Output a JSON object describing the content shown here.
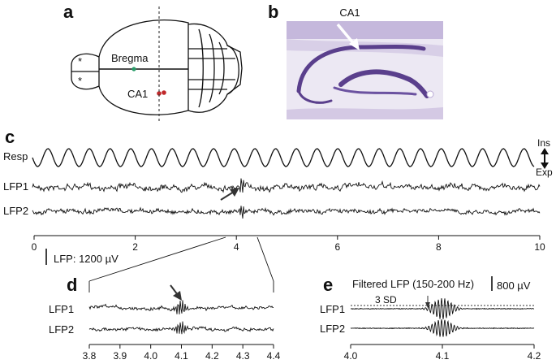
{
  "panels": {
    "a": {
      "letter": "a",
      "labels": {
        "bregma": "Bregma",
        "ca1": "CA1",
        "marker": "*"
      },
      "colors": {
        "bregma_dot": "#2a9d6a",
        "ca1_dots": "#c0282a"
      }
    },
    "b": {
      "letter": "b",
      "title": "CA1",
      "colors": {
        "tissue": "#ece8f3",
        "stain": "#5a3f8c",
        "stain_light": "#b8a8d4",
        "arrow": "#ffffff"
      }
    },
    "c": {
      "letter": "c",
      "traces": [
        "Resp",
        "LFP1",
        "LFP2"
      ],
      "breath_labels": {
        "ins": "Ins",
        "exp": "Exp"
      },
      "scale_bar": "LFP: 1200 µV",
      "axis_ticks": [
        "0",
        "2",
        "4",
        "6",
        "8",
        "10"
      ]
    },
    "d": {
      "letter": "d",
      "traces": [
        "LFP1",
        "LFP2"
      ],
      "axis_ticks": [
        "3.8",
        "3.9",
        "4.0",
        "4.1",
        "4.2",
        "4.3",
        "4.4"
      ]
    },
    "e": {
      "letter": "e",
      "title": "Filtered LFP (150-200 Hz)",
      "scale_bar": "800 µV",
      "threshold": "3 SD",
      "traces": [
        "LFP1",
        "LFP2"
      ],
      "axis_ticks": [
        "4.0",
        "4.1",
        "4.2"
      ]
    }
  },
  "chart_data": [
    {
      "type": "line",
      "panel": "c",
      "series": [
        {
          "name": "Resp"
        },
        {
          "name": "LFP1"
        },
        {
          "name": "LFP2"
        }
      ],
      "xlim": [
        0,
        10
      ],
      "x_ticks": [
        0,
        2,
        4,
        6,
        8,
        10
      ]
    },
    {
      "type": "line",
      "panel": "d",
      "series": [
        {
          "name": "LFP1"
        },
        {
          "name": "LFP2"
        }
      ],
      "xlim": [
        3.8,
        4.4
      ],
      "x_ticks": [
        3.8,
        3.9,
        4.0,
        4.1,
        4.2,
        4.3,
        4.4
      ]
    },
    {
      "type": "line",
      "panel": "e",
      "series": [
        {
          "name": "LFP1"
        },
        {
          "name": "LFP2"
        }
      ],
      "xlim": [
        4.0,
        4.2
      ],
      "x_ticks": [
        4.0,
        4.1,
        4.2
      ]
    }
  ]
}
